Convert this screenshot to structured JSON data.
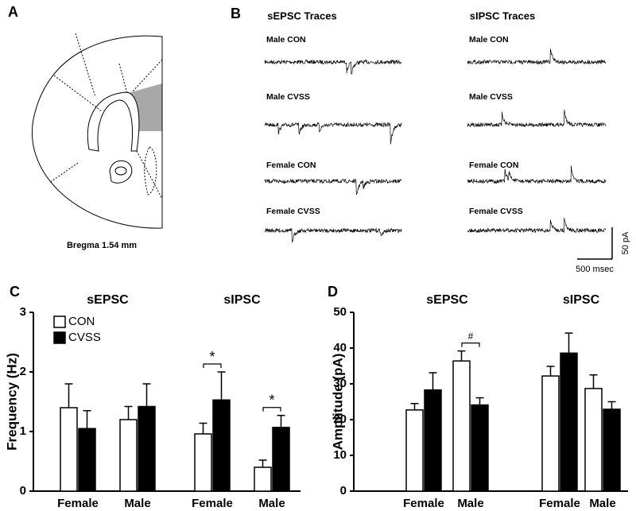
{
  "diagram": {
    "label": "A",
    "caption": "Bregma 1.54 mm"
  },
  "traces": {
    "label": "B",
    "columns": [
      {
        "title": "sEPSC Traces",
        "rows": [
          "Male CON",
          "Male CVSS",
          "Female CON",
          "Female CVSS"
        ]
      },
      {
        "title": "sIPSC Traces",
        "rows": [
          "Male CON",
          "Male CVSS",
          "Female CON",
          "Female CVSS"
        ]
      }
    ],
    "scale_bar": {
      "y": "50 pA",
      "x": "500 msec"
    }
  },
  "chart_data": [
    {
      "type": "bar",
      "panel_label": "C",
      "ylabel": "Frequency (Hz)",
      "ylim": [
        0,
        3
      ],
      "yticks": [
        0,
        1,
        2,
        3
      ],
      "legend": true,
      "groups": [
        {
          "title": "sEPSC",
          "categories": [
            "Female",
            "Male"
          ],
          "series": [
            {
              "name": "CON",
              "color": "#ffffff",
              "values": [
                1.4,
                1.2
              ],
              "errors": [
                0.4,
                0.22
              ]
            },
            {
              "name": "CVSS",
              "color": "#000000",
              "values": [
                1.05,
                1.42
              ],
              "errors": [
                0.3,
                0.38
              ]
            }
          ],
          "annotations": []
        },
        {
          "title": "sIPSC",
          "categories": [
            "Female",
            "Male"
          ],
          "series": [
            {
              "name": "CON",
              "color": "#ffffff",
              "values": [
                0.96,
                0.4
              ],
              "errors": [
                0.18,
                0.12
              ]
            },
            {
              "name": "CVSS",
              "color": "#000000",
              "values": [
                1.53,
                1.07
              ],
              "errors": [
                0.47,
                0.2
              ]
            }
          ],
          "annotations": [
            {
              "text": "*",
              "category": 0
            },
            {
              "text": "*",
              "category": 1
            }
          ]
        }
      ]
    },
    {
      "type": "bar",
      "panel_label": "D",
      "ylabel": "Amplitude (pA)",
      "ylim": [
        0,
        50
      ],
      "yticks": [
        0,
        10,
        20,
        30,
        40,
        50
      ],
      "legend": false,
      "groups": [
        {
          "title": "sEPSC",
          "categories": [
            "Female",
            "Male"
          ],
          "series": [
            {
              "name": "CON",
              "color": "#ffffff",
              "values": [
                22.7,
                36.4
              ],
              "errors": [
                1.8,
                2.8
              ]
            },
            {
              "name": "CVSS",
              "color": "#000000",
              "values": [
                28.3,
                24.1
              ],
              "errors": [
                4.8,
                2.0
              ]
            }
          ],
          "annotations": [
            {
              "text": "#",
              "category": 1
            }
          ]
        },
        {
          "title": "sIPSC",
          "categories": [
            "Female",
            "Male"
          ],
          "series": [
            {
              "name": "CON",
              "color": "#ffffff",
              "values": [
                32.2,
                28.7
              ],
              "errors": [
                2.7,
                3.8
              ]
            },
            {
              "name": "CVSS",
              "color": "#000000",
              "values": [
                38.6,
                22.9
              ],
              "errors": [
                5.6,
                2.1
              ]
            }
          ],
          "annotations": []
        }
      ]
    }
  ]
}
